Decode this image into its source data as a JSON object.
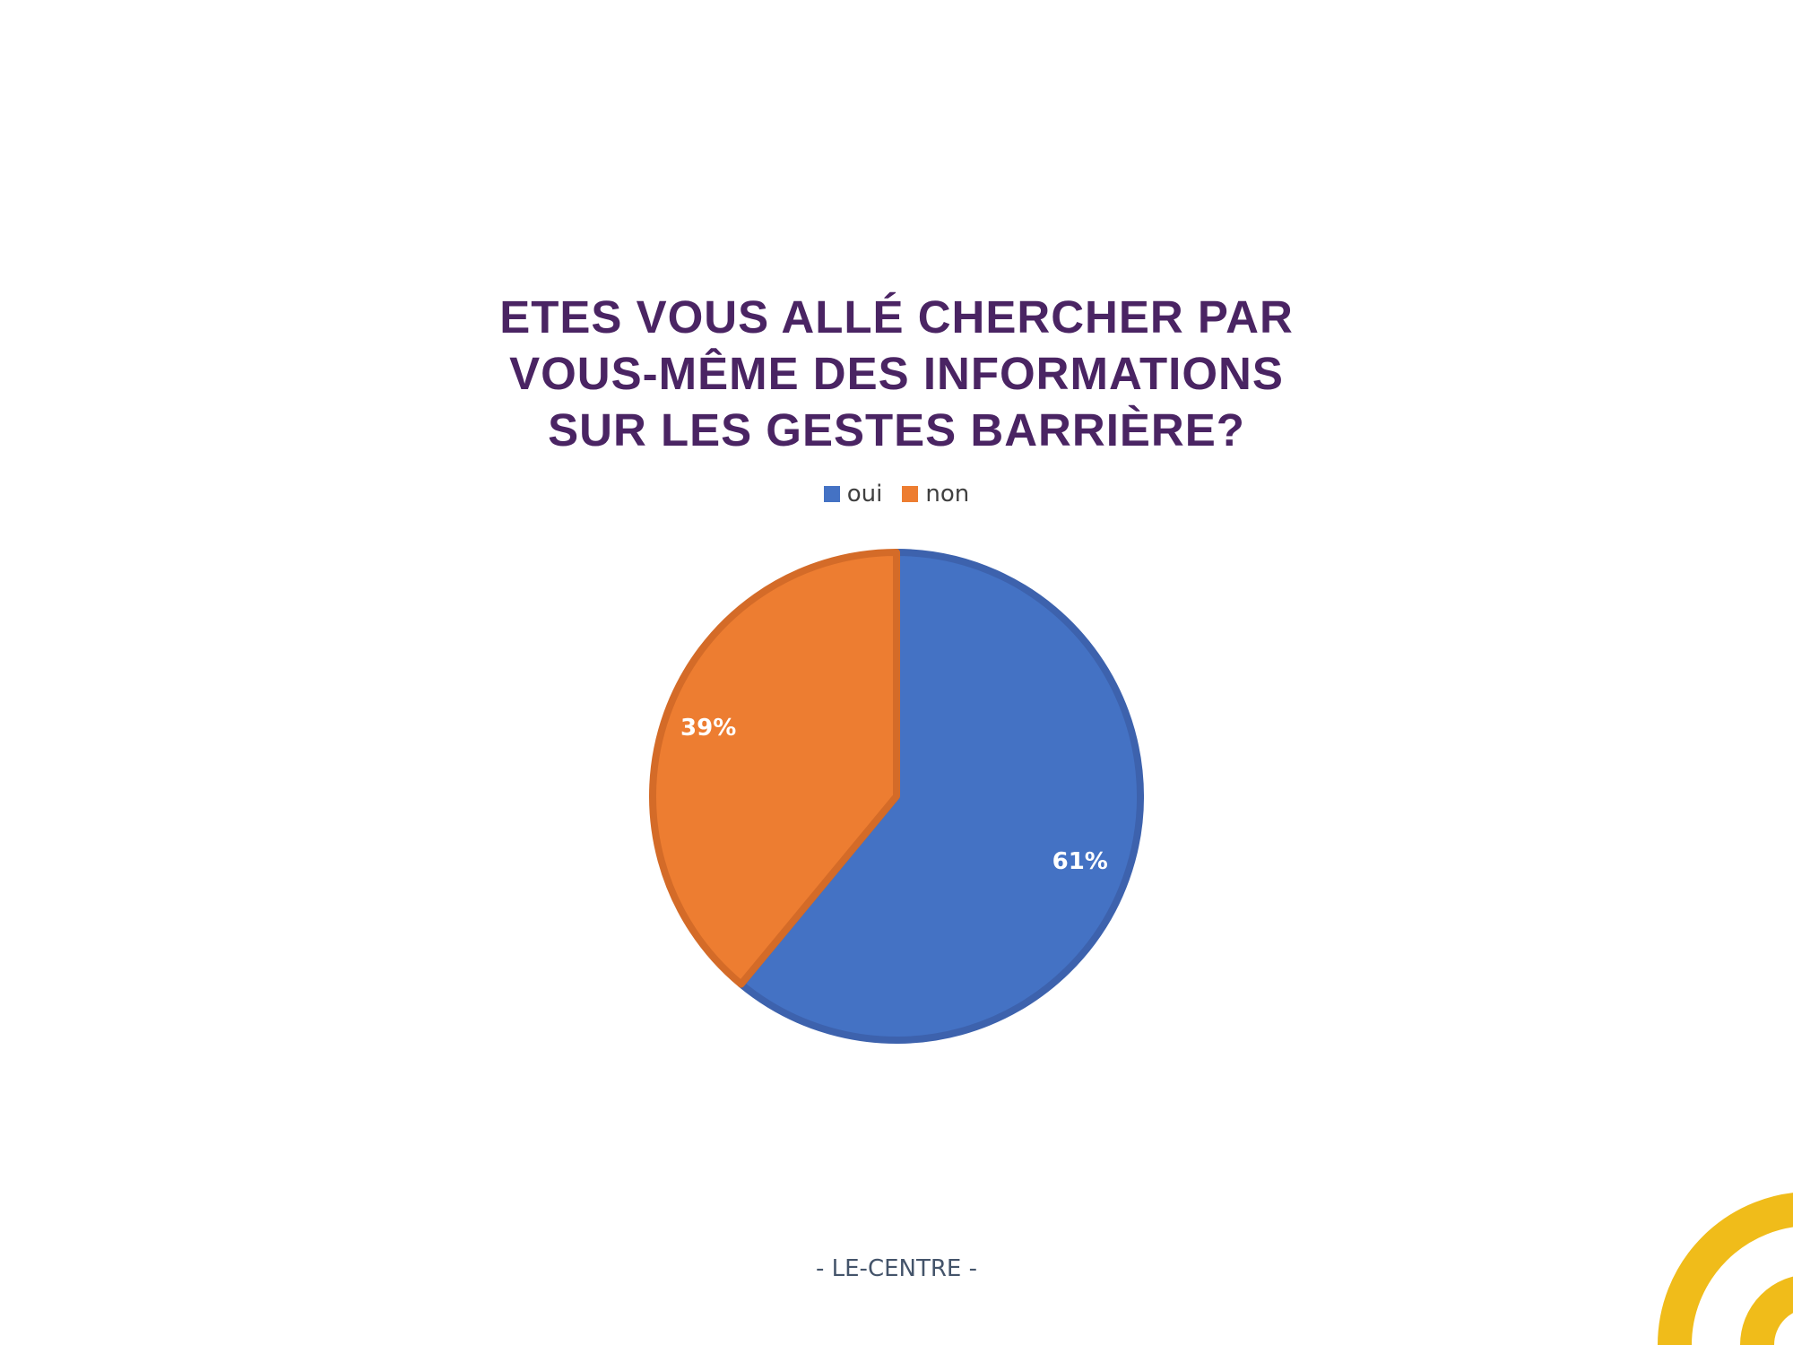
{
  "chart_data": {
    "type": "pie",
    "title_lines": [
      "ETES VOUS ALLÉ CHERCHER PAR",
      "VOUS-MÊME DES INFORMATIONS",
      "SUR LES GESTES BARRIÈRE?"
    ],
    "categories": [
      "oui",
      "non"
    ],
    "values": [
      61,
      39
    ],
    "data_labels": [
      "61%",
      "39%"
    ],
    "colors": [
      "#4472c4",
      "#ed7d31"
    ],
    "border_colors": [
      "#3d62ad",
      "#d46b28"
    ],
    "legend_position": "top",
    "start_angle": "12 o'clock",
    "direction": "clockwise"
  },
  "footer": {
    "text": "- LE-CENTRE -"
  },
  "decoration": {
    "accent_color": "#f0bc1a",
    "shape": "concentric-arcs-bottom-right"
  }
}
